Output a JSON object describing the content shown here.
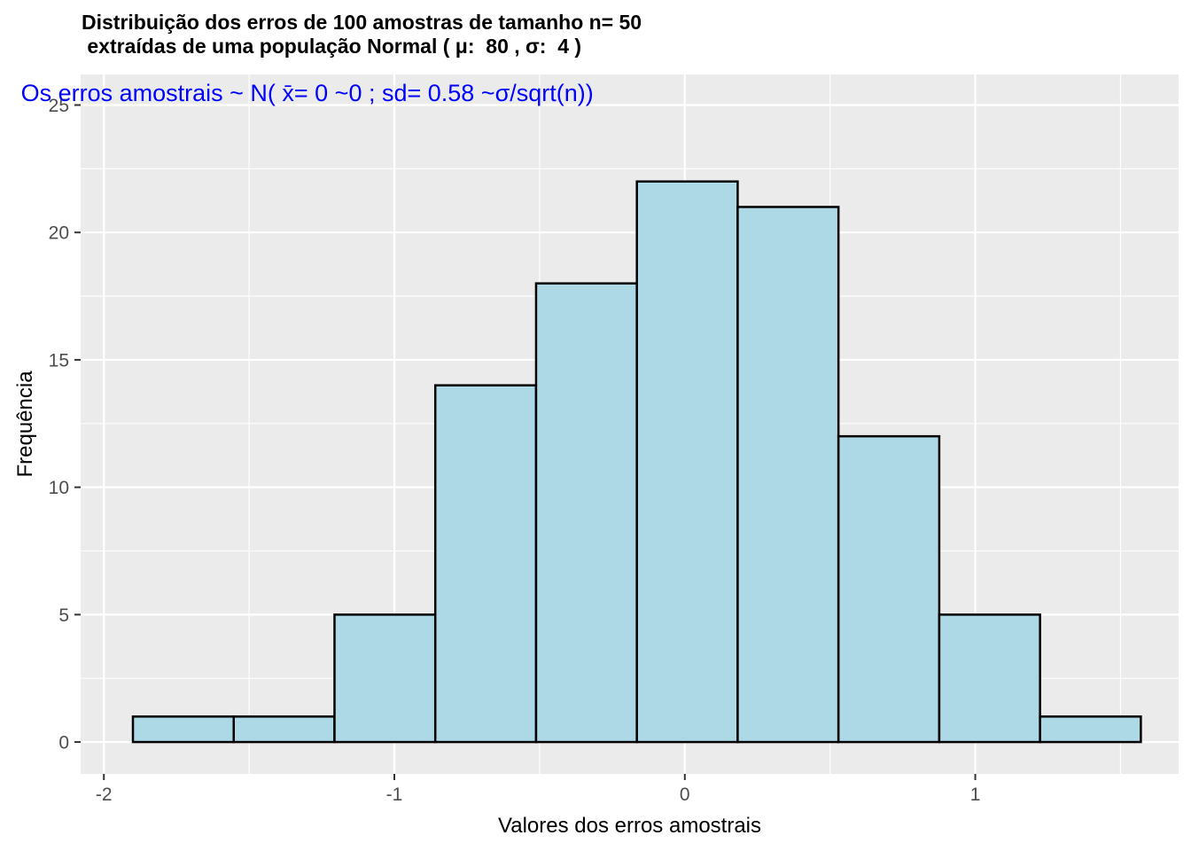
{
  "chart_data": {
    "type": "histogram",
    "title": "Distribuição dos erros de 100 amostras de tamanho n= 50",
    "subtitle": " extraídas de uma população Normal ( μ:  80 , σ:  4 )",
    "xlabel": "Valores dos erros amostrais",
    "ylabel": "Frequência",
    "annotation": {
      "text": "Os erros amostrais ~ N( x̄= 0 ~0 ; sd= 0.58  ~σ/sqrt(n))",
      "x": -1.3,
      "y": 25.5,
      "color": "#0000ff"
    },
    "xlim": [
      -2.08,
      1.7
    ],
    "ylim": [
      -1.25,
      26.2
    ],
    "x_ticks": [
      -2,
      -1,
      0,
      1
    ],
    "x_tick_labels": [
      "-2",
      "-1",
      "0",
      "1"
    ],
    "y_ticks": [
      0,
      5,
      10,
      15,
      20,
      25
    ],
    "y_tick_labels": [
      "0",
      "5",
      "10",
      "15",
      "20",
      "25"
    ],
    "bins": [
      {
        "x0": -1.9,
        "x1": -1.553,
        "count": 1
      },
      {
        "x0": -1.553,
        "x1": -1.206,
        "count": 1
      },
      {
        "x0": -1.206,
        "x1": -0.859,
        "count": 5
      },
      {
        "x0": -0.859,
        "x1": -0.512,
        "count": 14
      },
      {
        "x0": -0.512,
        "x1": -0.165,
        "count": 18
      },
      {
        "x0": -0.165,
        "x1": 0.182,
        "count": 22
      },
      {
        "x0": 0.182,
        "x1": 0.529,
        "count": 21
      },
      {
        "x0": 0.529,
        "x1": 0.876,
        "count": 12
      },
      {
        "x0": 0.876,
        "x1": 1.223,
        "count": 5
      },
      {
        "x0": 1.223,
        "x1": 1.57,
        "count": 1
      }
    ],
    "bar_fill": "#add8e6",
    "bar_stroke": "#000000",
    "panel_background": "#ebebeb",
    "grid": true
  }
}
